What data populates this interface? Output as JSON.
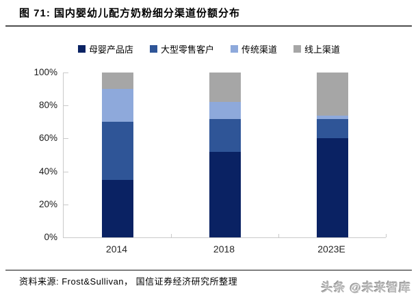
{
  "header": {
    "title": "图 71:  国内婴幼儿配方奶粉细分渠道份额分布"
  },
  "chart_data": {
    "type": "bar",
    "stacked": true,
    "title": "国内婴幼儿配方奶粉细分渠道份额分布",
    "categories": [
      "2014",
      "2018",
      "2023E"
    ],
    "series": [
      {
        "name": "母婴产品店",
        "color": "#0a2263",
        "values": [
          35,
          52,
          60
        ]
      },
      {
        "name": "大型零售客户",
        "color": "#2f5597",
        "values": [
          35,
          20,
          12
        ]
      },
      {
        "name": "传统渠道",
        "color": "#8ea9db",
        "values": [
          20,
          10,
          2
        ]
      },
      {
        "name": "线上渠道",
        "color": "#a6a6a6",
        "values": [
          10,
          18,
          26
        ]
      }
    ],
    "ylim": [
      0,
      100
    ],
    "y_ticks": [
      "0%",
      "20%",
      "40%",
      "60%",
      "80%",
      "100%"
    ],
    "y_unit": "percent",
    "legend_position": "top",
    "grid": false
  },
  "footer": {
    "source": "资料来源: Frost&Sullivan， 国信证券经济研究所整理",
    "watermark": "头条 @未来智库"
  }
}
